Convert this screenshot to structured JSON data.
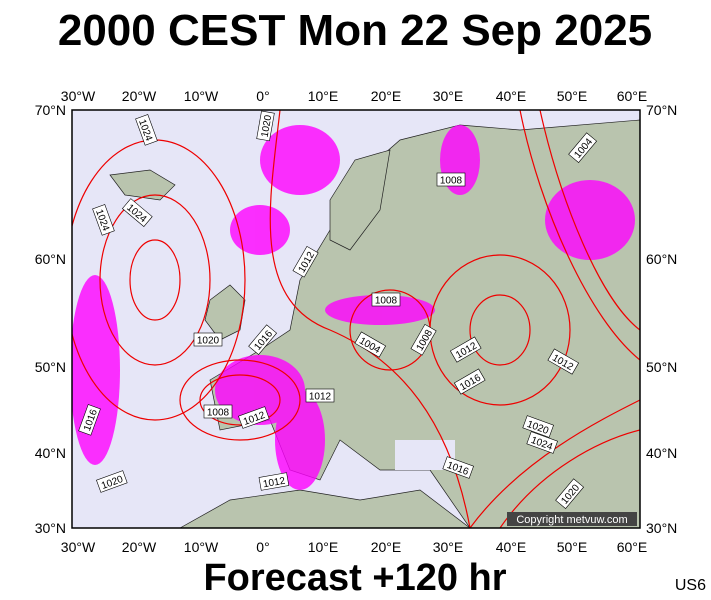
{
  "header": {
    "title": "2000 CEST Mon 22 Sep 2025"
  },
  "map": {
    "longitude_labels": [
      "30°W",
      "20°W",
      "10°W",
      "0°",
      "10°E",
      "20°E",
      "30°E",
      "40°E",
      "50°E",
      "60°E"
    ],
    "latitude_labels": [
      "70°N",
      "60°N",
      "50°N",
      "40°N",
      "30°N"
    ],
    "isobar_labels": [
      "1024",
      "1024",
      "1024",
      "1020",
      "1008",
      "1012",
      "1008",
      "1004",
      "1004",
      "1008",
      "1012",
      "1020",
      "1016",
      "1016",
      "1012",
      "1012",
      "1008",
      "1016",
      "1012",
      "1020",
      "1024",
      "1016",
      "1020",
      "1020",
      "1012"
    ],
    "credit": "Copyright metvuw.com"
  },
  "footer": {
    "forecast": "Forecast +120 hr",
    "code": "US6"
  }
}
